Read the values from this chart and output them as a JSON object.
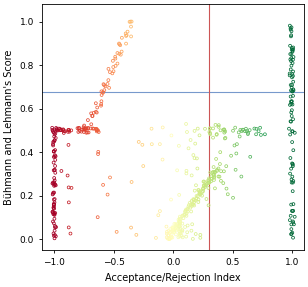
{
  "title": "",
  "xlabel": "Acceptance/Rejection Index",
  "ylabel": "Bühmann and Lehmann's Score",
  "xlim": [
    -1.1,
    1.1
  ],
  "ylim": [
    -0.05,
    1.08
  ],
  "xticks": [
    -1.0,
    -0.5,
    0.0,
    0.5,
    1.0
  ],
  "yticks": [
    0.0,
    0.2,
    0.4,
    0.6,
    0.8,
    1.0
  ],
  "hline_y": 0.675,
  "hline_color": "#7799cc",
  "vline_x": 0.3,
  "vline_color": "#cc5555",
  "marker_size": 3.5,
  "background_color": "#ffffff",
  "seed": 42
}
